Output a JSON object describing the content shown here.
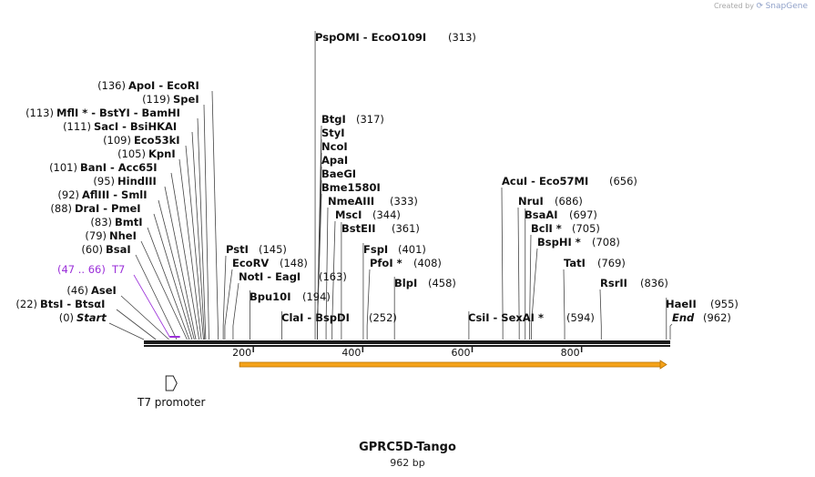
{
  "credit": {
    "prefix": "Created by",
    "brand": "SnapGene"
  },
  "map": {
    "name": "GPRC5D-Tango",
    "length_label": "962 bp",
    "length": 962,
    "colors": {
      "backbone": "#1a1a1a",
      "feature": "#f5a31a",
      "primer": "#9b30d9",
      "line": "#444444"
    },
    "ticks": [
      {
        "pos": 200,
        "label": "200"
      },
      {
        "pos": 400,
        "label": "400"
      },
      {
        "pos": 600,
        "label": "600"
      },
      {
        "pos": 800,
        "label": "800"
      }
    ],
    "sites": [
      {
        "num": "(0)",
        "name": "Start",
        "pos": 0,
        "italic": true
      },
      {
        "num": "(22)",
        "name": "BtsI  - BtsαI",
        "pos": 22
      },
      {
        "num": "(46)",
        "name": "AseI",
        "pos": 46
      },
      {
        "num": "(60)",
        "name": "BsaI",
        "pos": 60
      },
      {
        "num": "(79)",
        "name": "NheI",
        "pos": 79
      },
      {
        "num": "(83)",
        "name": "BmtI",
        "pos": 83
      },
      {
        "num": "(88)",
        "name": "DraI  - PmeI",
        "pos": 88
      },
      {
        "num": "(92)",
        "name": "AflIII  - SmlI",
        "pos": 92
      },
      {
        "num": "(95)",
        "name": "HindIII",
        "pos": 95
      },
      {
        "num": "(101)",
        "name": "BanI  - Acc65I",
        "pos": 101
      },
      {
        "num": "(105)",
        "name": "KpnI",
        "pos": 105
      },
      {
        "num": "(109)",
        "name": "Eco53kI",
        "pos": 109
      },
      {
        "num": "(111)",
        "name": "SacI  - BsiHKAI",
        "pos": 111
      },
      {
        "num": "(113)",
        "name": "MflI *  - BstYI  - BamHI",
        "pos": 113
      },
      {
        "num": "(119)",
        "name": "SpeI",
        "pos": 119
      },
      {
        "num": "(136)",
        "name": "ApoI  - EcoRI",
        "pos": 136
      },
      {
        "num": "(145)",
        "name": "PstI",
        "pos": 145
      },
      {
        "num": "(148)",
        "name": "EcoRV",
        "pos": 148
      },
      {
        "num": "(163)",
        "name": "NotI  - EagI",
        "pos": 163
      },
      {
        "num": "(194)",
        "name": "Bpu10I",
        "pos": 194
      },
      {
        "num": "(252)",
        "name": "ClaI  - BspDI",
        "pos": 252
      },
      {
        "num": "(313)",
        "name": "PspOMI  - EcoO109I",
        "pos": 313
      },
      {
        "num": "(317)",
        "name": "BtgI",
        "pos": 317
      },
      {
        "num": "",
        "name": "StyI",
        "pos": 317
      },
      {
        "num": "",
        "name": "NcoI",
        "pos": 317
      },
      {
        "num": "",
        "name": "ApaI",
        "pos": 317
      },
      {
        "num": "",
        "name": "BaeGI",
        "pos": 317
      },
      {
        "num": "",
        "name": "Bme1580I",
        "pos": 317
      },
      {
        "num": "(333)",
        "name": "NmeAIII",
        "pos": 333
      },
      {
        "num": "(344)",
        "name": "MscI",
        "pos": 344
      },
      {
        "num": "(361)",
        "name": "BstEII",
        "pos": 361
      },
      {
        "num": "(401)",
        "name": "FspI",
        "pos": 401
      },
      {
        "num": "(408)",
        "name": "PfoI *",
        "pos": 408
      },
      {
        "num": "(458)",
        "name": "BlpI",
        "pos": 458
      },
      {
        "num": "(594)",
        "name": "CsiI  - SexAI *",
        "pos": 594
      },
      {
        "num": "(656)",
        "name": "AcuI  - Eco57MI",
        "pos": 656
      },
      {
        "num": "(686)",
        "name": "NruI",
        "pos": 686
      },
      {
        "num": "(697)",
        "name": "BsaAI",
        "pos": 697
      },
      {
        "num": "(705)",
        "name": "BclI *",
        "pos": 705
      },
      {
        "num": "(708)",
        "name": "BspHI *",
        "pos": 708
      },
      {
        "num": "(769)",
        "name": "TatI",
        "pos": 769
      },
      {
        "num": "(836)",
        "name": "RsrII",
        "pos": 836
      },
      {
        "num": "(955)",
        "name": "HaeII",
        "pos": 955
      },
      {
        "num": "(962)",
        "name": "End",
        "pos": 962,
        "italic": true
      }
    ],
    "primer": {
      "num": "(47 .. 66)",
      "name": "T7",
      "start": 47,
      "end": 66
    },
    "promoter": {
      "label": "T7 promoter",
      "start": 47,
      "end": 66
    },
    "feature": {
      "start": 175,
      "end": 962
    }
  }
}
